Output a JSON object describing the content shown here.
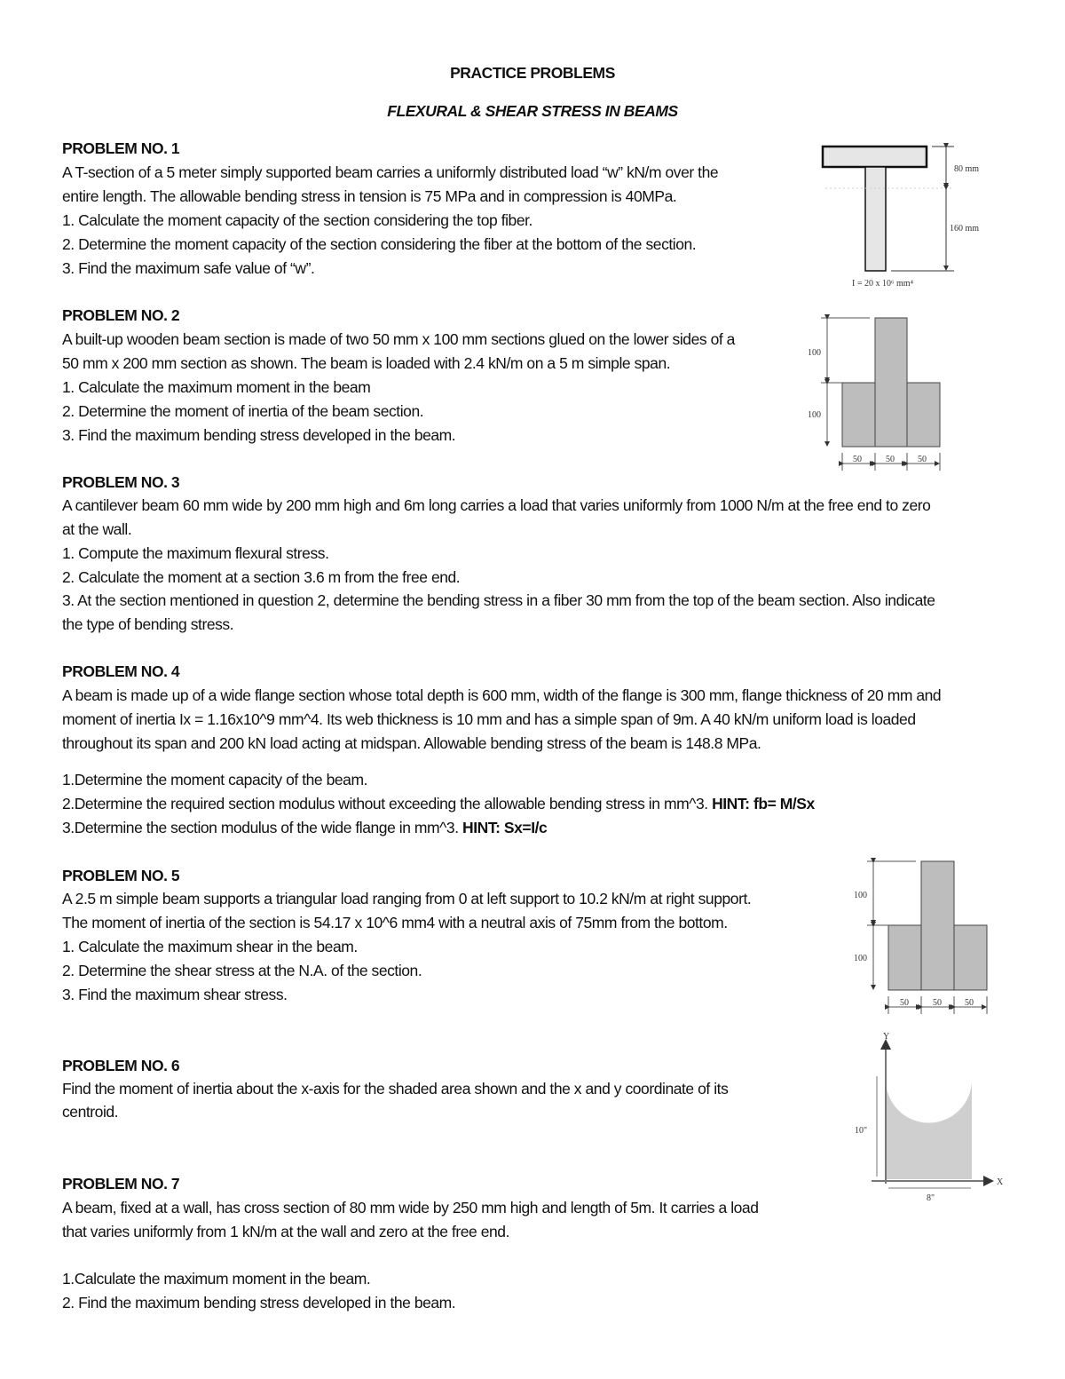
{
  "title": "PRACTICE PROBLEMS",
  "subtitle": "FLEXURAL & SHEAR STRESS IN BEAMS",
  "p1": {
    "heading": "PROBLEM NO. 1",
    "lines": [
      "A T-section of a 5 meter simply supported beam carries a uniformly distributed load “w” kN/m over the",
      "entire length. The allowable bending stress in tension is 75 MPa and in compression is 40MPa.",
      "1. Calculate the moment capacity of the section considering the top fiber.",
      "2. Determine the moment capacity of the section considering the fiber at the bottom of the section.",
      "3. Find the maximum safe value of “w”."
    ],
    "figure": {
      "flange_label": "80 mm",
      "web_label": "160 mm",
      "caption": "I = 20 x 10⁶ mm⁴"
    }
  },
  "p2": {
    "heading": "PROBLEM NO. 2",
    "lines": [
      "A built-up wooden beam section is made of two 50 mm x 100 mm sections glued on the lower sides of a",
      "50 mm x 200 mm section as shown. The beam is loaded with 2.4 kN/m on a 5 m simple span.",
      "1. Calculate the maximum moment in the beam",
      "2. Determine the moment of inertia of the beam section.",
      "3. Find the maximum bending stress developed in the beam."
    ],
    "figure": {
      "h_top": "100",
      "h_bottom": "100",
      "w1": "50",
      "w2": "50",
      "w3": "50"
    }
  },
  "p3": {
    "heading": "PROBLEM NO. 3",
    "lines": [
      "A cantilever beam 60 mm wide by 200 mm high and 6m long carries a load that varies uniformly from 1000 N/m at the free end to zero",
      "at the wall.",
      "1. Compute the maximum flexural stress.",
      "2. Calculate the moment at a section 3.6 m from the free end.",
      "3. At the section mentioned in question 2, determine the bending stress in a fiber 30 mm from the top of the beam section. Also indicate",
      "the type of bending stress."
    ]
  },
  "p4": {
    "heading": "PROBLEM NO. 4",
    "lines": [
      "A beam is made up of a wide flange section whose total depth is 600 mm, width of the flange is 300 mm, flange thickness of 20 mm and",
      "moment of inertia Ix = 1.16x10^9 mm^4. Its web thickness is 10 mm and has a simple span of 9m. A 40 kN/m uniform load is loaded",
      "throughout its span and 200 kN load acting at midspan. Allowable bending stress of the beam is 148.8 MPa.",
      "1.Determine the moment capacity of the beam.",
      "2.Determine the required section modulus without exceeding the allowable bending stress in mm^3. ",
      "3.Determine the section modulus of the wide flange in mm^3. "
    ],
    "hint2": "HINT: fb= M/Sx",
    "hint3": "HINT: Sx=I/c"
  },
  "p5": {
    "heading": "PROBLEM NO. 5",
    "lines": [
      "A 2.5 m simple beam supports a triangular load ranging from 0 at left support to 10.2 kN/m at right support.",
      "The moment of inertia of the section is 54.17 x 10^6 mm4 with a neutral axis of 75mm from the bottom.",
      "1. Calculate the maximum shear in the beam.",
      "2. Determine the shear stress at the N.A. of the section.",
      "3. Find the maximum shear stress."
    ],
    "figure": {
      "h_top": "100",
      "h_bottom": "100",
      "w1": "50",
      "w2": "50",
      "w3": "50"
    }
  },
  "p6": {
    "heading": "PROBLEM NO. 6",
    "lines": [
      "Find the moment of inertia about the x-axis for the shaded area shown and the x and y coordinate of its",
      "centroid."
    ],
    "figure": {
      "y_axis": "Y",
      "x_axis": "X",
      "height": "10\"",
      "width": "8\""
    }
  },
  "p7": {
    "heading": "PROBLEM NO. 7",
    "lines": [
      "A beam, fixed at a wall, has cross section of 80 mm wide by 250 mm high and length of 5m. It carries a load",
      "that varies uniformly from 1 kN/m at the wall and zero at the free end.",
      "1.Calculate the maximum moment in the beam.",
      "2. Find the maximum bending stress developed in the beam."
    ]
  }
}
